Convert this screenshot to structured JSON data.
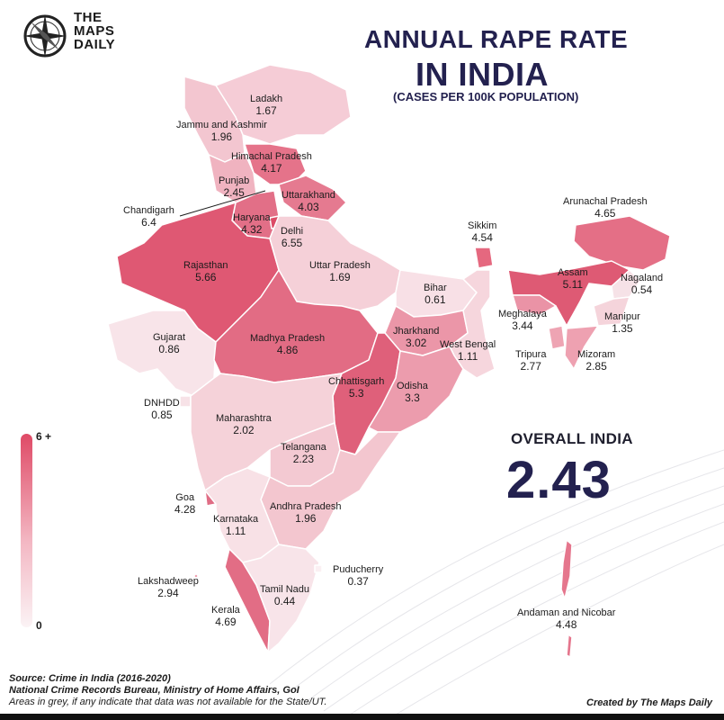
{
  "brand": {
    "line1": "THE",
    "line2": "MAPS",
    "line3": "DAILY"
  },
  "title": {
    "line1": "ANNUAL RAPE RATE",
    "line2": "IN INDIA",
    "subtitle": "(CASES PER 100K POPULATION)"
  },
  "regions": {
    "ladakh": {
      "name": "Ladakh",
      "value": "1.67"
    },
    "jammu_kashmir": {
      "name": "Jammu and Kashmir",
      "value": "1.96"
    },
    "himachal": {
      "name": "Himachal Pradesh",
      "value": "4.17"
    },
    "punjab": {
      "name": "Punjab",
      "value": "2.45"
    },
    "uttarakhand": {
      "name": "Uttarakhand",
      "value": "4.03"
    },
    "chandigarh": {
      "name": "Chandigarh",
      "value": "6.4"
    },
    "haryana": {
      "name": "Haryana",
      "value": "4.32"
    },
    "delhi": {
      "name": "Delhi",
      "value": "6.55"
    },
    "rajasthan": {
      "name": "Rajasthan",
      "value": "5.66"
    },
    "uttar_pradesh": {
      "name": "Uttar Pradesh",
      "value": "1.69"
    },
    "bihar": {
      "name": "Bihar",
      "value": "0.61"
    },
    "sikkim": {
      "name": "Sikkim",
      "value": "4.54"
    },
    "arunachal": {
      "name": "Arunachal Pradesh",
      "value": "4.65"
    },
    "assam": {
      "name": "Assam",
      "value": "5.11"
    },
    "nagaland": {
      "name": "Nagaland",
      "value": "0.54"
    },
    "meghalaya": {
      "name": "Meghalaya",
      "value": "3.44"
    },
    "manipur": {
      "name": "Manipur",
      "value": "1.35"
    },
    "tripura": {
      "name": "Tripura",
      "value": "2.77"
    },
    "mizoram": {
      "name": "Mizoram",
      "value": "2.85"
    },
    "gujarat": {
      "name": "Gujarat",
      "value": "0.86"
    },
    "madhya_pradesh": {
      "name": "Madhya Pradesh",
      "value": "4.86"
    },
    "jharkhand": {
      "name": "Jharkhand",
      "value": "3.02"
    },
    "west_bengal": {
      "name": "West Bengal",
      "value": "1.11"
    },
    "chhattisgarh": {
      "name": "Chhattisgarh",
      "value": "5.3"
    },
    "odisha": {
      "name": "Odisha",
      "value": "3.3"
    },
    "dnhdd": {
      "name": "DNHDD",
      "value": "0.85"
    },
    "maharashtra": {
      "name": "Maharashtra",
      "value": "2.02"
    },
    "telangana": {
      "name": "Telangana",
      "value": "2.23"
    },
    "goa": {
      "name": "Goa",
      "value": "4.28"
    },
    "andhra": {
      "name": "Andhra Pradesh",
      "value": "1.96"
    },
    "karnataka": {
      "name": "Karnataka",
      "value": "1.11"
    },
    "puducherry": {
      "name": "Puducherry",
      "value": "0.37"
    },
    "lakshadweep": {
      "name": "Lakshadweep",
      "value": "2.94"
    },
    "tamil_nadu": {
      "name": "Tamil Nadu",
      "value": "0.44"
    },
    "kerala": {
      "name": "Kerala",
      "value": "4.69"
    },
    "andaman": {
      "name": "Andaman and Nicobar",
      "value": "4.48"
    }
  },
  "overall": {
    "label": "OVERALL INDIA",
    "value": "2.43"
  },
  "legend": {
    "max_label": "6 +",
    "min_label": "0",
    "color_high": "#df4a66",
    "color_low": "#fbf3f5"
  },
  "source": {
    "line1": "Source: Crime in India (2016-2020)",
    "line2": "National Crime Records Bureau, Ministry of Home Affairs, GoI",
    "line3": "Areas in grey, if any indicate that data was not available for the State/UT."
  },
  "credit": "Created by The Maps Daily"
}
